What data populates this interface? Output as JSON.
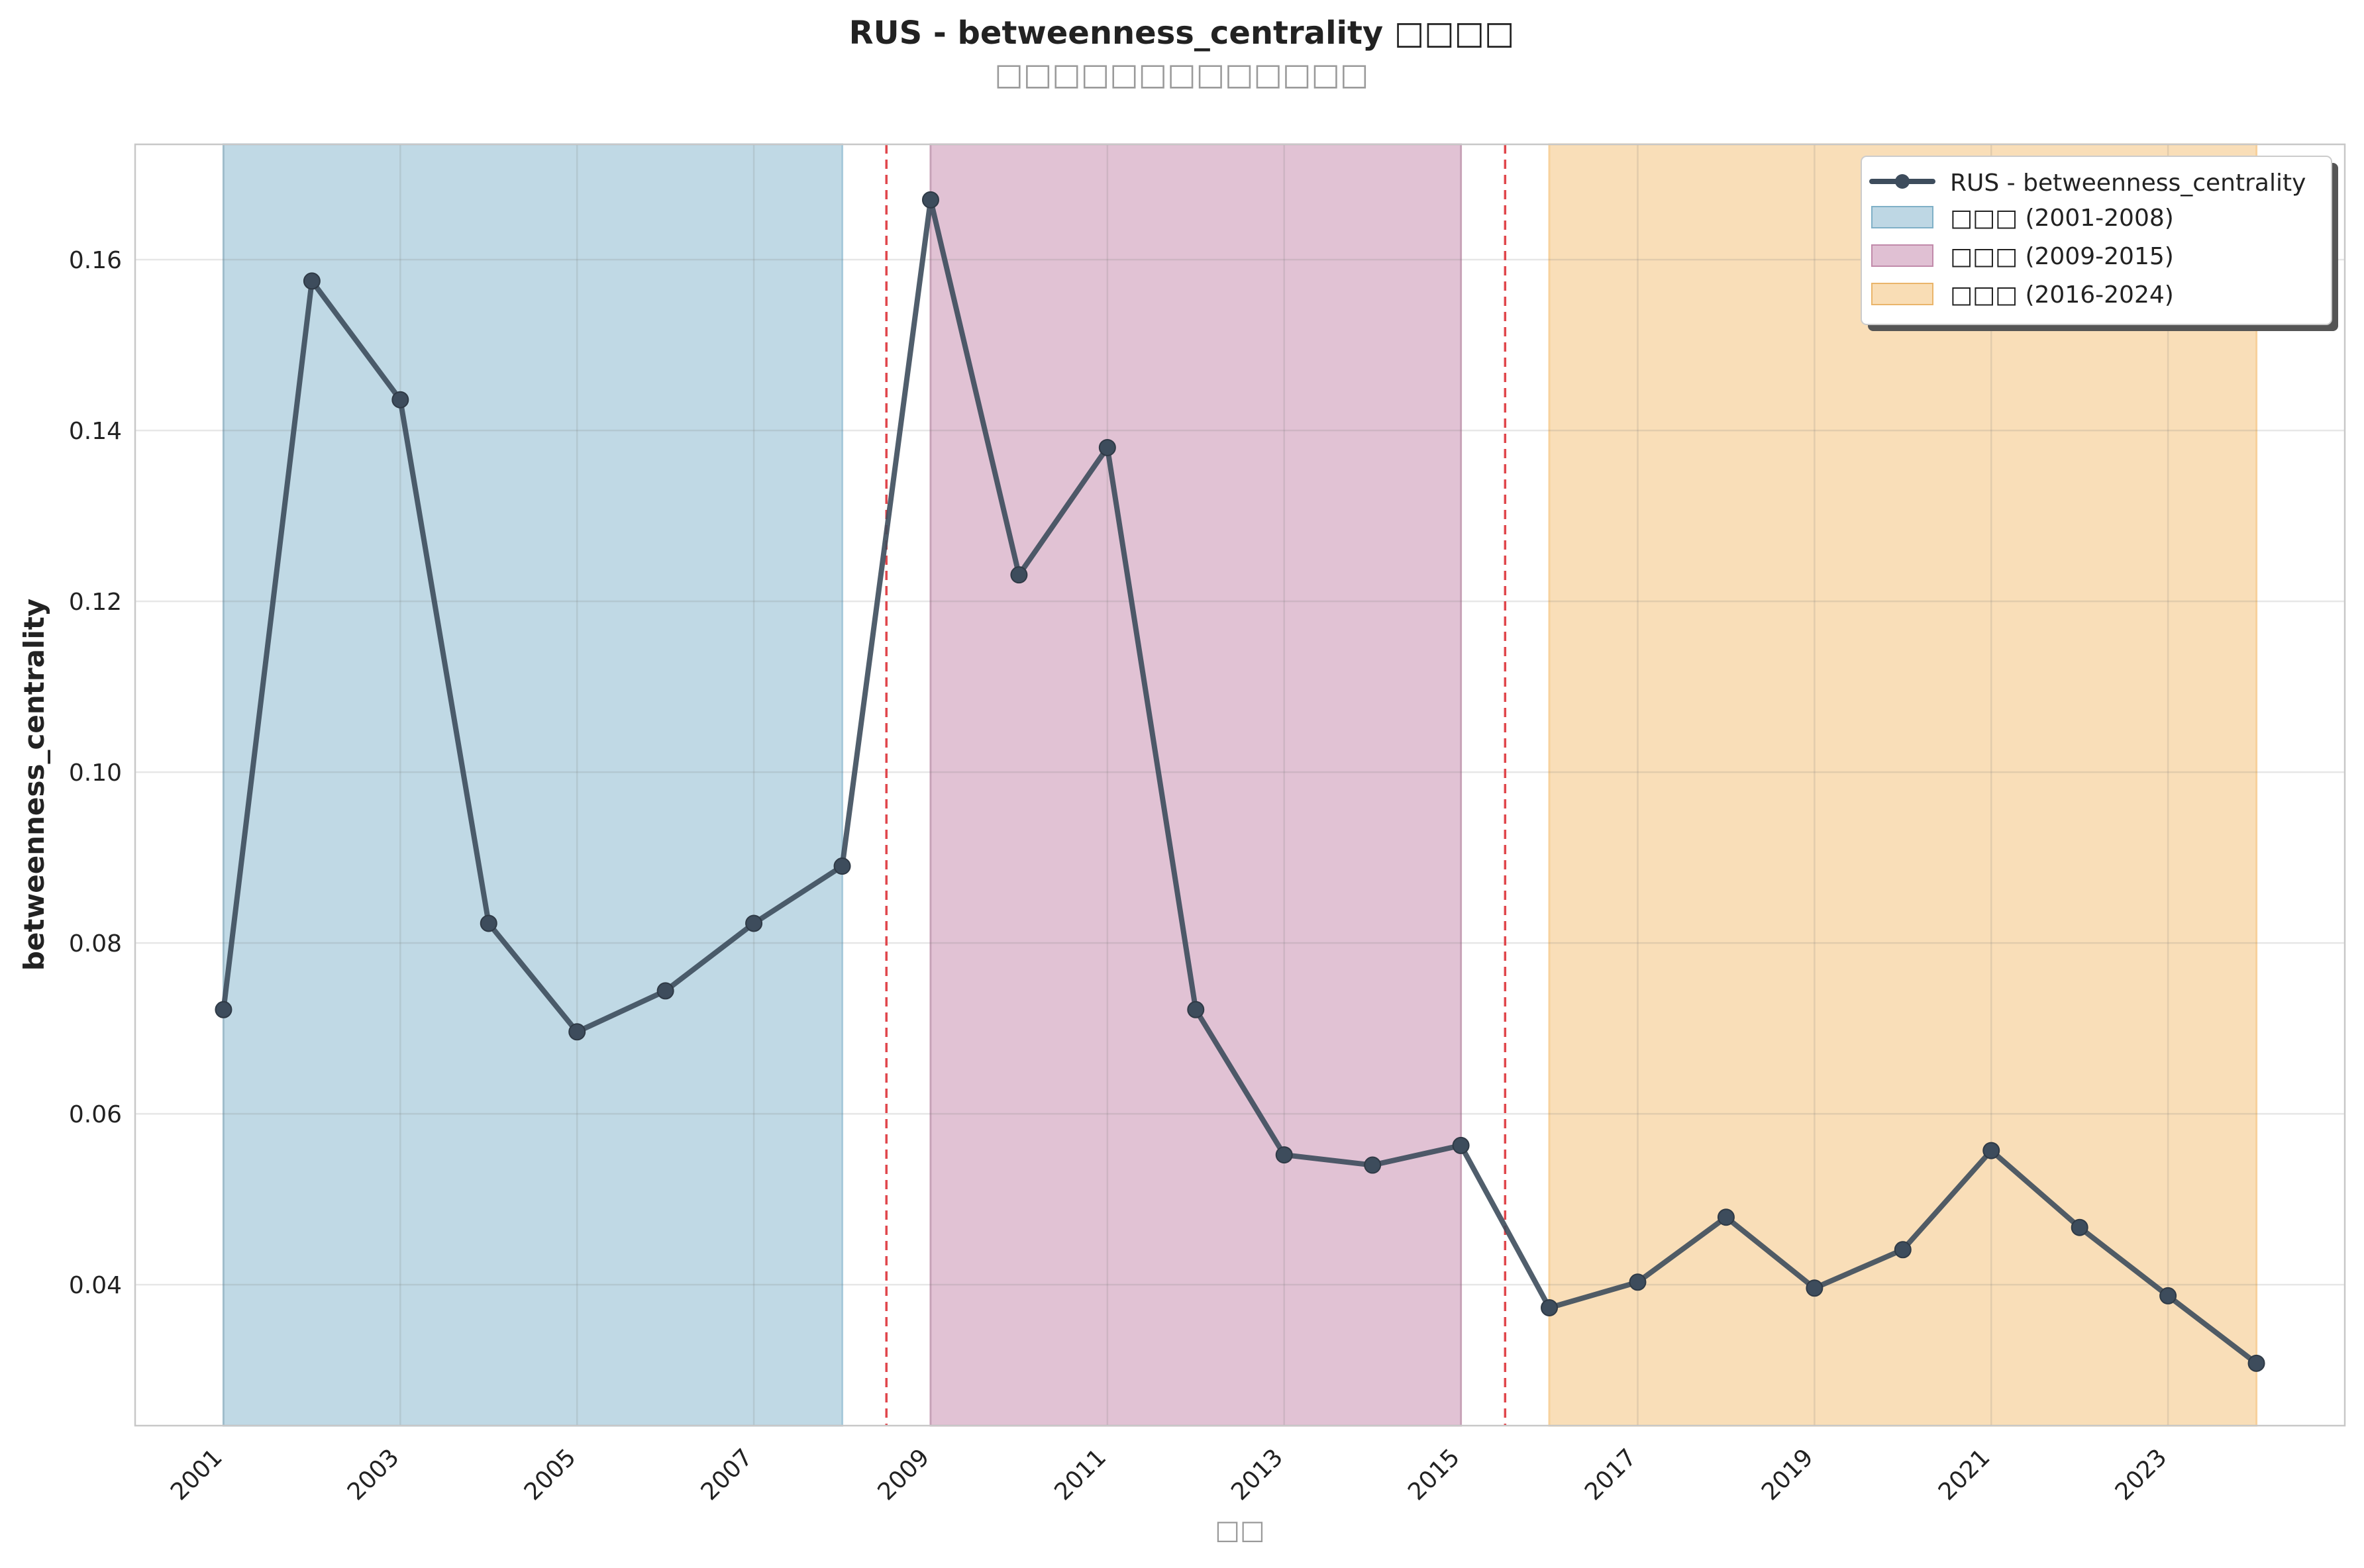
{
  "chart_data": {
    "type": "line",
    "title": "RUS - betweenness_centrality □□□□",
    "subtitle": "□□□□□□□□□□□□□",
    "xlabel": "□□",
    "ylabel": "betweenness_centrality",
    "xlim": [
      2000,
      2025
    ],
    "ylim": [
      0.0235,
      0.1735
    ],
    "x_ticks": [
      2001,
      2003,
      2005,
      2007,
      2009,
      2011,
      2013,
      2015,
      2017,
      2019,
      2021,
      2023
    ],
    "y_ticks": [
      0.04,
      0.06,
      0.08,
      0.1,
      0.12,
      0.14,
      0.16
    ],
    "y_tick_labels": [
      "0.04",
      "0.06",
      "0.08",
      "0.10",
      "0.12",
      "0.14",
      "0.16"
    ],
    "grid": true,
    "legend_position": "top-right",
    "series": [
      {
        "name": "RUS - betweenness_centrality",
        "color": "#3d4c5c",
        "x": [
          2001,
          2002,
          2003,
          2004,
          2005,
          2006,
          2007,
          2008,
          2009,
          2010,
          2011,
          2012,
          2013,
          2014,
          2015,
          2016,
          2017,
          2018,
          2019,
          2020,
          2021,
          2022,
          2023,
          2024
        ],
        "y": [
          0.0722,
          0.1575,
          0.1436,
          0.0823,
          0.0696,
          0.0744,
          0.0823,
          0.089,
          0.167,
          0.1231,
          0.138,
          0.0722,
          0.0552,
          0.054,
          0.0563,
          0.0373,
          0.0403,
          0.0479,
          0.0396,
          0.0441,
          0.0557,
          0.0467,
          0.0387,
          0.0308
        ]
      }
    ],
    "periods": [
      {
        "label": "□□□ (2001-2008)",
        "start": 2001,
        "end": 2008,
        "color": "#a8cadb"
      },
      {
        "label": "□□□ (2009-2015)",
        "start": 2009,
        "end": 2015,
        "color": "#d6abc4"
      },
      {
        "label": "□□□ (2016-2024)",
        "start": 2016,
        "end": 2024,
        "color": "#f7d19c"
      }
    ],
    "breakpoints": [
      2008.5,
      2015.5
    ],
    "breakpoint_color": "#e0474c"
  }
}
